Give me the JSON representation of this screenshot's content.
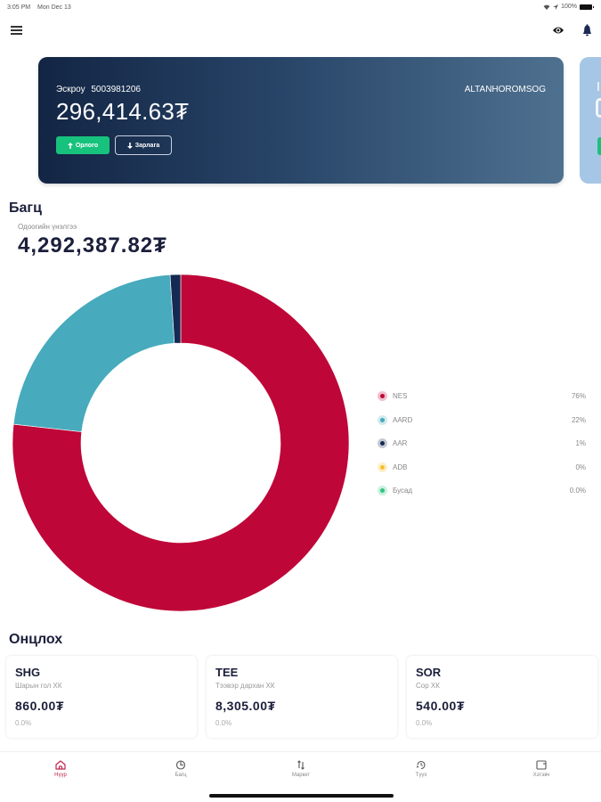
{
  "status_bar": {
    "time": "3:05 PM",
    "date": "Mon Dec 13",
    "battery": "100%"
  },
  "header": {
    "menu_icon": "hamburger-icon",
    "eye_icon": "eye-icon",
    "bell_icon": "bell-icon"
  },
  "account_card": {
    "label": "Эскроу",
    "account_number": "5003981206",
    "balance": "296,414.63₮",
    "owner": "ALTANHOROMSOG",
    "income_button": "Орлого",
    "expense_button": "Зарлага"
  },
  "portfolio": {
    "title": "Багц",
    "subtitle": "Одоогийн үнэлгээ",
    "total": "4,292,387.82₮"
  },
  "chart_data": {
    "type": "pie",
    "donut": true,
    "title": "Багц",
    "categories": [
      "NES",
      "AARD",
      "AAR",
      "ADB",
      "Бусад"
    ],
    "values": [
      76,
      22,
      1,
      0,
      0
    ],
    "labels": [
      "76%",
      "22%",
      "1%",
      "0%",
      "0.0%"
    ],
    "colors": [
      "#bf0638",
      "#47aabd",
      "#152a52",
      "#f5c02d",
      "#2fc57f"
    ],
    "legend_position": "right"
  },
  "featured": {
    "title": "Онцлох",
    "stocks": [
      {
        "symbol": "SHG",
        "name": "Шарын гол ХК",
        "price": "860.00₮",
        "change": "0.0%"
      },
      {
        "symbol": "TEE",
        "name": "Тээвэр дархан ХК",
        "price": "8,305.00₮",
        "change": "0.0%"
      },
      {
        "symbol": "SOR",
        "name": "Сор ХК",
        "price": "540.00₮",
        "change": "0.0%"
      }
    ]
  },
  "bottom_nav": {
    "items": [
      {
        "label": "Нүүр",
        "icon": "home-icon",
        "active": true
      },
      {
        "label": "Багц",
        "icon": "pie-chart-icon",
        "active": false
      },
      {
        "label": "Маркет",
        "icon": "transfer-arrows-icon",
        "active": false
      },
      {
        "label": "Түүх",
        "icon": "history-icon",
        "active": false
      },
      {
        "label": "Хэтэвч",
        "icon": "wallet-icon",
        "active": false
      }
    ],
    "active_color": "#c0234a"
  }
}
